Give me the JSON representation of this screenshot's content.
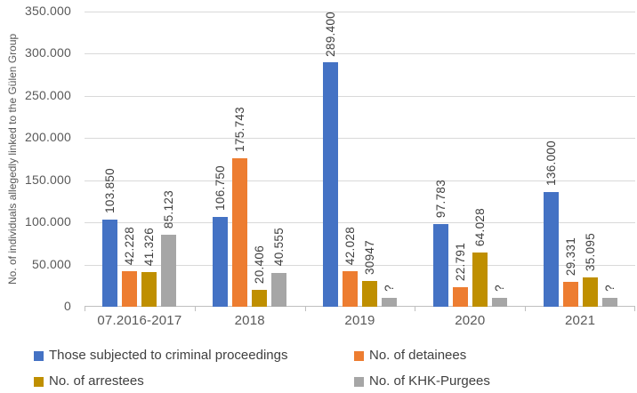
{
  "chart_data": {
    "type": "bar",
    "title": "",
    "xlabel": "",
    "ylabel": "No. of individuals allegedly linked to the Gülen Group",
    "categories": [
      "07.2016-2017",
      "2018",
      "2019",
      "2020",
      "2021"
    ],
    "series": [
      {
        "name": "Those subjected to criminal proceedings",
        "color": "#4472C4",
        "values": [
          103850,
          106750,
          289400,
          97783,
          136000
        ],
        "labels": [
          "103.850",
          "106.750",
          "289.400",
          "97.783",
          "136.000"
        ]
      },
      {
        "name": "No. of detainees",
        "color": "#ED7D31",
        "values": [
          42228,
          175743,
          42028,
          22791,
          29331
        ],
        "labels": [
          "42.228",
          "175.743",
          "42.028",
          "22.791",
          "29.331"
        ]
      },
      {
        "name": "No. of arrestees",
        "color": "#BF8F00",
        "values": [
          41326,
          20406,
          30947,
          64028,
          35095
        ],
        "labels": [
          "41.326",
          "20.406",
          "30947",
          "64.028",
          "35.095"
        ]
      },
      {
        "name": "No. of KHK-Purgees",
        "color": "#A6A6A6",
        "values": [
          85123,
          40555,
          10500,
          11000,
          10500
        ],
        "labels": [
          "85.123",
          "40.555",
          "?",
          "?",
          "?"
        ]
      }
    ],
    "y_ticks": [
      "0",
      "50.000",
      "100.000",
      "150.000",
      "200.000",
      "250.000",
      "300.000",
      "350.000"
    ],
    "y_tick_step": 50000,
    "ylim": [
      0,
      350000
    ],
    "grid": true,
    "legend_position": "bottom",
    "colors": {
      "gridline": "#D9D9D9",
      "axis_line": "#BFBFBF",
      "axis_text": "#595959",
      "label_text": "#404040",
      "background": "#FFFFFF"
    }
  }
}
